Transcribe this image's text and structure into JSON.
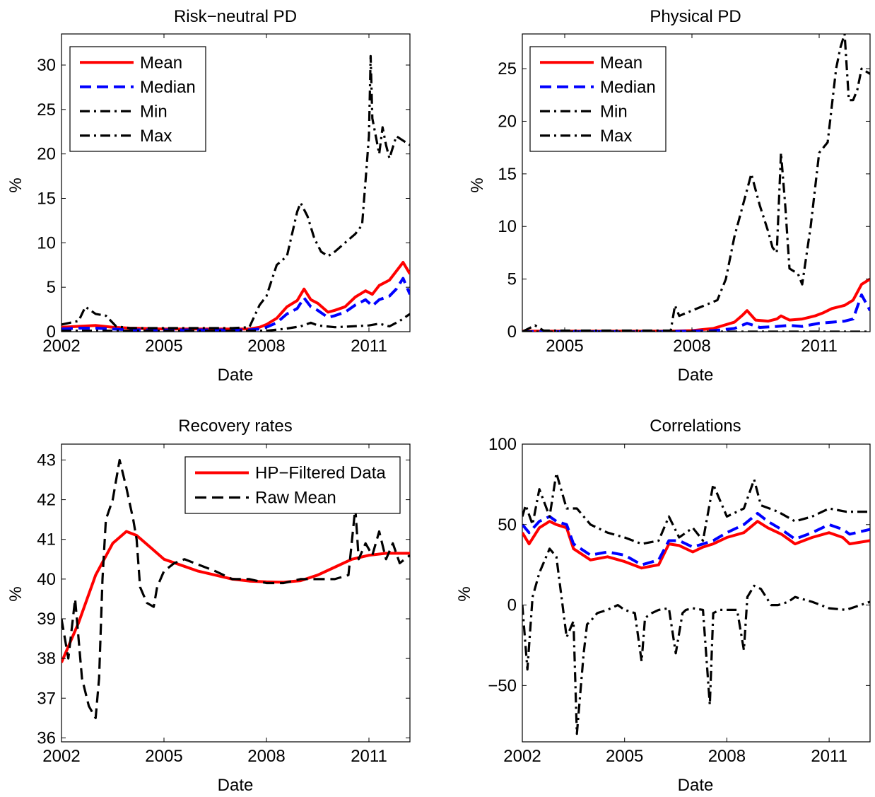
{
  "chart_data": [
    {
      "type": "line",
      "title": "Risk−neutral PD",
      "xlabel": "Date",
      "ylabel": "%",
      "xlim": [
        2002.0,
        2012.2
      ],
      "ylim": [
        0,
        33.5
      ],
      "xticks": [
        2002,
        2005,
        2008,
        2011
      ],
      "xtick_labels": [
        "2002",
        "2005",
        "2008",
        "2011"
      ],
      "yticks": [
        0,
        5,
        10,
        15,
        20,
        25,
        30
      ],
      "ytick_labels": [
        "0",
        "5",
        "10",
        "15",
        "20",
        "25",
        "30"
      ],
      "legend_position": "top-left",
      "series": [
        {
          "name": "Mean",
          "color": "#ff0000",
          "style": "solid",
          "x": [
            2002.0,
            2002.5,
            2003.0,
            2003.5,
            2004.0,
            2005.0,
            2006.0,
            2007.0,
            2007.5,
            2007.8,
            2008.0,
            2008.3,
            2008.6,
            2008.9,
            2009.1,
            2009.3,
            2009.5,
            2009.8,
            2010.0,
            2010.3,
            2010.6,
            2010.9,
            2011.1,
            2011.3,
            2011.6,
            2011.8,
            2012.0,
            2012.2
          ],
          "y": [
            0.5,
            0.6,
            0.7,
            0.5,
            0.4,
            0.3,
            0.3,
            0.3,
            0.3,
            0.5,
            0.8,
            1.5,
            2.8,
            3.5,
            4.8,
            3.6,
            3.2,
            2.2,
            2.4,
            2.8,
            3.9,
            4.6,
            4.2,
            5.2,
            5.8,
            6.8,
            7.8,
            6.5
          ]
        },
        {
          "name": "Median",
          "color": "#0000ff",
          "style": "dashed",
          "x": [
            2002.0,
            2002.5,
            2003.0,
            2003.5,
            2004.0,
            2005.0,
            2006.0,
            2007.0,
            2007.5,
            2007.8,
            2008.0,
            2008.3,
            2008.6,
            2008.9,
            2009.1,
            2009.3,
            2009.5,
            2009.8,
            2010.0,
            2010.3,
            2010.6,
            2010.9,
            2011.1,
            2011.3,
            2011.6,
            2011.8,
            2012.0,
            2012.2
          ],
          "y": [
            0.3,
            0.4,
            0.4,
            0.3,
            0.2,
            0.2,
            0.2,
            0.2,
            0.2,
            0.3,
            0.5,
            1.0,
            2.0,
            2.6,
            3.8,
            2.8,
            2.4,
            1.6,
            1.8,
            2.2,
            3.0,
            3.6,
            2.9,
            3.6,
            4.0,
            4.8,
            6.0,
            4.2
          ]
        },
        {
          "name": "Min",
          "color": "#000000",
          "style": "dashdot",
          "x": [
            2002.0,
            2003.0,
            2004.0,
            2005.0,
            2006.0,
            2007.0,
            2007.5,
            2008.0,
            2008.5,
            2009.0,
            2009.3,
            2009.5,
            2010.0,
            2010.5,
            2011.0,
            2011.3,
            2011.6,
            2011.9,
            2012.2
          ],
          "y": [
            0.1,
            0.1,
            0.1,
            0.1,
            0.1,
            0.1,
            0.1,
            0.1,
            0.3,
            0.6,
            1.0,
            0.7,
            0.5,
            0.6,
            0.7,
            0.9,
            0.6,
            1.2,
            2.0
          ]
        },
        {
          "name": "Max",
          "color": "#000000",
          "style": "dashdot",
          "x": [
            2002.0,
            2002.5,
            2002.7,
            2003.0,
            2003.3,
            2003.6,
            2004.0,
            2005.0,
            2006.0,
            2007.0,
            2007.5,
            2007.8,
            2008.0,
            2008.3,
            2008.6,
            2008.9,
            2009.0,
            2009.2,
            2009.4,
            2009.6,
            2009.8,
            2010.0,
            2010.3,
            2010.6,
            2010.8,
            2010.9,
            2011.0,
            2011.05,
            2011.1,
            2011.2,
            2011.3,
            2011.4,
            2011.5,
            2011.6,
            2011.8,
            2012.0,
            2012.2
          ],
          "y": [
            0.8,
            1.2,
            2.8,
            2.0,
            1.8,
            0.6,
            0.4,
            0.4,
            0.4,
            0.4,
            0.5,
            3.0,
            4.0,
            7.5,
            8.5,
            13.5,
            14.5,
            13.0,
            10.5,
            9.0,
            8.5,
            9.0,
            10.0,
            11.0,
            12.0,
            17.0,
            22.0,
            31.0,
            24.0,
            22.0,
            20.0,
            23.0,
            21.0,
            19.5,
            22.0,
            21.5,
            21.0
          ]
        }
      ]
    },
    {
      "type": "line",
      "title": "Physical PD",
      "xlabel": "Date",
      "ylabel": "%",
      "xlim": [
        2004.0,
        2012.2
      ],
      "ylim": [
        0,
        28.3
      ],
      "xticks": [
        2005,
        2008,
        2011
      ],
      "xtick_labels": [
        "2005",
        "2008",
        "2011"
      ],
      "yticks": [
        0,
        5,
        10,
        15,
        20,
        25
      ],
      "ytick_labels": [
        "0",
        "5",
        "10",
        "15",
        "20",
        "25"
      ],
      "legend_position": "top-left",
      "series": [
        {
          "name": "Mean",
          "color": "#ff0000",
          "style": "solid",
          "x": [
            2004.0,
            2005.0,
            2006.0,
            2007.0,
            2007.5,
            2008.0,
            2008.5,
            2009.0,
            2009.2,
            2009.3,
            2009.5,
            2009.8,
            2010.0,
            2010.1,
            2010.3,
            2010.6,
            2010.9,
            2011.1,
            2011.3,
            2011.6,
            2011.8,
            2012.0,
            2012.2
          ],
          "y": [
            0.05,
            0.05,
            0.05,
            0.05,
            0.05,
            0.1,
            0.3,
            0.9,
            1.6,
            2.0,
            1.1,
            1.0,
            1.2,
            1.5,
            1.1,
            1.2,
            1.5,
            1.8,
            2.2,
            2.5,
            3.0,
            4.5,
            5.0
          ]
        },
        {
          "name": "Median",
          "color": "#0000ff",
          "style": "dashed",
          "x": [
            2004.0,
            2005.0,
            2006.0,
            2007.0,
            2008.0,
            2008.5,
            2009.0,
            2009.3,
            2009.6,
            2010.0,
            2010.3,
            2010.6,
            2011.0,
            2011.3,
            2011.6,
            2011.8,
            2012.0,
            2012.2
          ],
          "y": [
            0.0,
            0.0,
            0.0,
            0.0,
            0.05,
            0.1,
            0.3,
            0.8,
            0.4,
            0.5,
            0.6,
            0.5,
            0.8,
            0.9,
            1.0,
            1.2,
            3.5,
            2.0
          ]
        },
        {
          "name": "Min",
          "color": "#000000",
          "style": "dashdot",
          "x": [
            2004.0,
            2006.0,
            2008.0,
            2010.0,
            2011.0,
            2012.2
          ],
          "y": [
            0.0,
            0.0,
            0.0,
            0.0,
            0.0,
            0.0
          ]
        },
        {
          "name": "Max",
          "color": "#000000",
          "style": "dashdot",
          "x": [
            2004.0,
            2004.3,
            2004.5,
            2005.0,
            2006.0,
            2007.0,
            2007.5,
            2007.6,
            2007.7,
            2008.0,
            2008.3,
            2008.6,
            2008.8,
            2009.0,
            2009.2,
            2009.4,
            2009.6,
            2009.8,
            2009.9,
            2010.0,
            2010.1,
            2010.2,
            2010.3,
            2010.5,
            2010.6,
            2010.8,
            2011.0,
            2011.2,
            2011.4,
            2011.5,
            2011.6,
            2011.7,
            2011.8,
            2011.9,
            2012.0,
            2012.2
          ],
          "y": [
            0.0,
            0.6,
            0.1,
            0.1,
            0.1,
            0.1,
            0.1,
            2.5,
            1.5,
            2.0,
            2.5,
            3.0,
            5.0,
            9.0,
            12.0,
            15.0,
            12.0,
            9.5,
            8.0,
            7.5,
            17.0,
            12.0,
            6.0,
            5.5,
            4.5,
            10.0,
            17.0,
            18.0,
            25.0,
            27.0,
            28.3,
            22.0,
            22.0,
            23.0,
            25.0,
            24.5
          ]
        }
      ]
    },
    {
      "type": "line",
      "title": "Recovery rates",
      "xlabel": "Date",
      "ylabel": "%",
      "xlim": [
        2002.0,
        2012.2
      ],
      "ylim": [
        35.9,
        43.4
      ],
      "xticks": [
        2002,
        2005,
        2008,
        2011
      ],
      "xtick_labels": [
        "2002",
        "2005",
        "2008",
        "2011"
      ],
      "yticks": [
        36,
        37,
        38,
        39,
        40,
        41,
        42,
        43
      ],
      "ytick_labels": [
        "36",
        "37",
        "38",
        "39",
        "40",
        "41",
        "42",
        "43"
      ],
      "legend_position": "top-right",
      "series": [
        {
          "name": "HP−Filtered Data",
          "color": "#ff0000",
          "style": "solid",
          "x": [
            2002.0,
            2002.5,
            2003.0,
            2003.5,
            2003.9,
            2004.2,
            2004.6,
            2005.0,
            2005.5,
            2006.0,
            2006.5,
            2007.0,
            2007.5,
            2008.0,
            2008.5,
            2009.0,
            2009.5,
            2010.0,
            2010.5,
            2011.0,
            2011.5,
            2012.2
          ],
          "y": [
            37.9,
            38.9,
            40.1,
            40.9,
            41.2,
            41.1,
            40.8,
            40.5,
            40.35,
            40.2,
            40.1,
            40.0,
            39.95,
            39.93,
            39.92,
            39.96,
            40.1,
            40.3,
            40.5,
            40.6,
            40.65,
            40.65
          ]
        },
        {
          "name": "Raw Mean",
          "color": "#000000",
          "style": "dashed",
          "x": [
            2002.0,
            2002.2,
            2002.4,
            2002.6,
            2002.8,
            2003.0,
            2003.1,
            2003.2,
            2003.3,
            2003.5,
            2003.7,
            2003.9,
            2004.1,
            2004.2,
            2004.3,
            2004.5,
            2004.7,
            2004.8,
            2005.0,
            2005.3,
            2005.6,
            2005.9,
            2006.2,
            2006.5,
            2007.0,
            2007.5,
            2008.0,
            2008.5,
            2009.0,
            2009.5,
            2010.0,
            2010.4,
            2010.6,
            2010.7,
            2010.9,
            2011.1,
            2011.3,
            2011.5,
            2011.7,
            2011.9,
            2012.2
          ],
          "y": [
            39.0,
            38.0,
            39.5,
            37.5,
            36.8,
            36.5,
            37.5,
            40.0,
            41.5,
            42.0,
            43.0,
            42.3,
            41.5,
            41.0,
            39.8,
            39.4,
            39.3,
            39.8,
            40.2,
            40.4,
            40.5,
            40.4,
            40.3,
            40.2,
            40.0,
            40.0,
            39.9,
            39.9,
            40.0,
            40.0,
            40.0,
            40.1,
            41.8,
            40.5,
            40.9,
            40.6,
            41.2,
            40.5,
            40.9,
            40.4,
            40.6
          ]
        }
      ]
    },
    {
      "type": "line",
      "title": "Correlations",
      "xlabel": "Date",
      "ylabel": "%",
      "xlim": [
        2002.0,
        2012.2
      ],
      "ylim": [
        -85,
        100
      ],
      "xticks": [
        2002,
        2005,
        2008,
        2011
      ],
      "xtick_labels": [
        "2002",
        "2005",
        "2008",
        "2011"
      ],
      "yticks": [
        -50,
        0,
        50,
        100
      ],
      "ytick_labels": [
        "−50",
        "0",
        "50",
        "100"
      ],
      "series": [
        {
          "name": "",
          "color": "#ff0000",
          "style": "solid",
          "x": [
            2002.0,
            2002.2,
            2002.5,
            2002.8,
            2003.0,
            2003.3,
            2003.5,
            2004.0,
            2004.5,
            2005.0,
            2005.5,
            2006.0,
            2006.3,
            2006.6,
            2007.0,
            2007.3,
            2007.6,
            2008.0,
            2008.5,
            2008.9,
            2009.2,
            2009.6,
            2010.0,
            2010.5,
            2011.0,
            2011.4,
            2011.6,
            2012.2
          ],
          "y": [
            45,
            38,
            48,
            52,
            50,
            48,
            35,
            28,
            30,
            27,
            23,
            25,
            38,
            37,
            33,
            36,
            38,
            42,
            45,
            52,
            48,
            44,
            38,
            42,
            45,
            42,
            38,
            40
          ]
        },
        {
          "name": "",
          "color": "#0000ff",
          "style": "dashed",
          "x": [
            2002.0,
            2002.2,
            2002.5,
            2002.8,
            2003.0,
            2003.3,
            2003.5,
            2004.0,
            2004.5,
            2005.0,
            2005.5,
            2006.0,
            2006.3,
            2006.6,
            2007.0,
            2007.3,
            2007.6,
            2008.0,
            2008.5,
            2008.9,
            2009.2,
            2009.6,
            2010.0,
            2010.5,
            2011.0,
            2011.4,
            2011.6,
            2012.2
          ],
          "y": [
            50,
            45,
            52,
            55,
            52,
            50,
            38,
            31,
            33,
            31,
            25,
            28,
            40,
            40,
            36,
            38,
            40,
            45,
            50,
            57,
            52,
            47,
            41,
            45,
            50,
            47,
            44,
            47
          ]
        },
        {
          "name": "",
          "color": "#000000",
          "style": "dashdot",
          "x": [
            2002.0,
            2002.1,
            2002.3,
            2002.5,
            2002.8,
            2003.0,
            2003.3,
            2003.6,
            2004.0,
            2004.5,
            2005.0,
            2005.5,
            2006.0,
            2006.3,
            2006.6,
            2007.0,
            2007.3,
            2007.6,
            2008.0,
            2008.5,
            2008.8,
            2009.0,
            2009.5,
            2010.0,
            2010.5,
            2011.0,
            2011.5,
            2012.2
          ],
          "y": [
            55,
            62,
            50,
            72,
            55,
            82,
            60,
            60,
            50,
            45,
            42,
            38,
            40,
            55,
            42,
            48,
            40,
            75,
            55,
            60,
            78,
            62,
            58,
            52,
            55,
            60,
            58,
            58
          ]
        },
        {
          "name": "",
          "color": "#000000",
          "style": "dashdot",
          "x": [
            2002.0,
            2002.15,
            2002.3,
            2002.5,
            2002.8,
            2003.0,
            2003.3,
            2003.5,
            2003.6,
            2003.8,
            2003.9,
            2004.0,
            2004.2,
            2004.5,
            2004.8,
            2005.0,
            2005.3,
            2005.5,
            2005.6,
            2005.8,
            2006.0,
            2006.3,
            2006.5,
            2006.7,
            2006.8,
            2007.0,
            2007.3,
            2007.5,
            2007.6,
            2007.8,
            2008.0,
            2008.3,
            2008.5,
            2008.6,
            2008.8,
            2009.0,
            2009.3,
            2009.5,
            2009.8,
            2010.0,
            2010.5,
            2011.0,
            2011.5,
            2012.2
          ],
          "y": [
            0,
            -40,
            5,
            20,
            35,
            30,
            -20,
            -10,
            -80,
            -30,
            -12,
            -10,
            -5,
            -3,
            0,
            -3,
            -5,
            -35,
            -8,
            -5,
            -3,
            -2,
            -30,
            -5,
            -3,
            -2,
            -3,
            -62,
            -5,
            -3,
            -3,
            -3,
            -28,
            5,
            12,
            10,
            0,
            0,
            2,
            5,
            2,
            -2,
            -3,
            2
          ]
        }
      ]
    }
  ]
}
